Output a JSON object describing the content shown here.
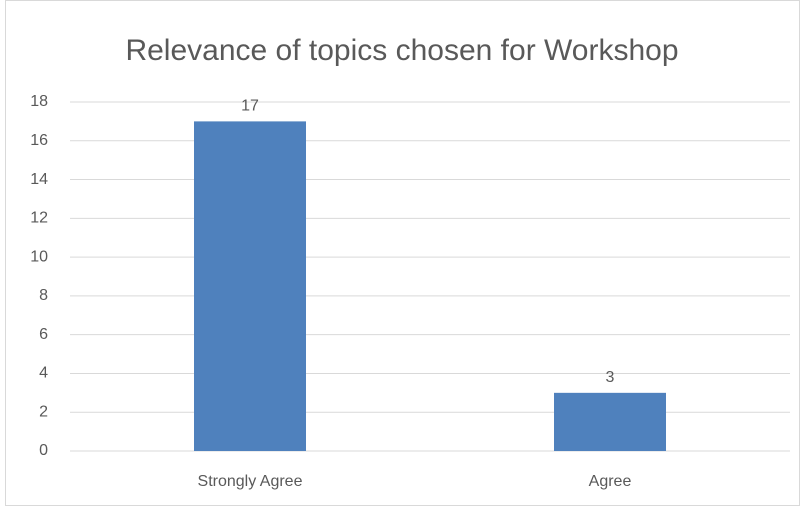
{
  "chart_data": {
    "type": "bar",
    "title": "Relevance of topics chosen for Workshop",
    "categories": [
      "Strongly Agree",
      "Agree"
    ],
    "values": [
      17,
      3
    ],
    "color": "#4f81bd",
    "ylim": [
      0,
      18
    ],
    "yticks": [
      0,
      2,
      4,
      6,
      8,
      10,
      12,
      14,
      16,
      18
    ],
    "grid": true
  }
}
